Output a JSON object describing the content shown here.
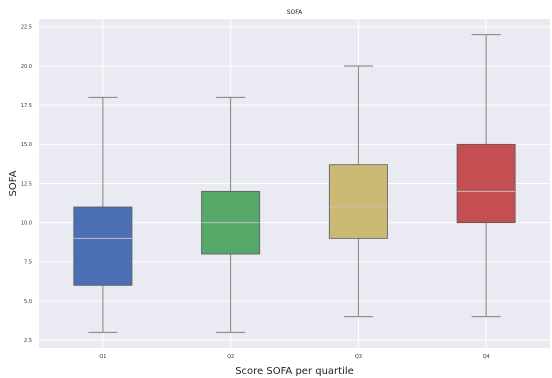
{
  "chart_data": {
    "type": "box",
    "title": "SOFA",
    "xlabel": "Score SOFA per quartile",
    "ylabel": "SOFA",
    "ylim": [
      2,
      23
    ],
    "yticks": [
      "2.5",
      "5.0",
      "7.5",
      "10.0",
      "12.5",
      "15.0",
      "17.5",
      "20.0",
      "22.5"
    ],
    "grid": true,
    "categories": [
      "Q1",
      "Q2",
      "Q3",
      "Q4"
    ],
    "boxes": [
      {
        "category": "Q1",
        "min": 3,
        "q1": 6,
        "median": 9,
        "q3": 11,
        "max": 18,
        "color": "#4a6fb5"
      },
      {
        "category": "Q2",
        "min": 3,
        "q1": 8,
        "median": 10,
        "q3": 12,
        "max": 18,
        "color": "#55a868"
      },
      {
        "category": "Q3",
        "min": 4,
        "q1": 9,
        "median": 11,
        "q3": 13.7,
        "max": 20,
        "color": "#ccb974"
      },
      {
        "category": "Q4",
        "min": 4,
        "q1": 10,
        "median": 12,
        "q3": 15,
        "max": 22,
        "color": "#c44e52"
      }
    ]
  },
  "style": {
    "plot_background": "#eaeaf2",
    "grid_color": "#ffffff",
    "whisker_color": "#808080",
    "median_color": "#bfbfbf"
  }
}
